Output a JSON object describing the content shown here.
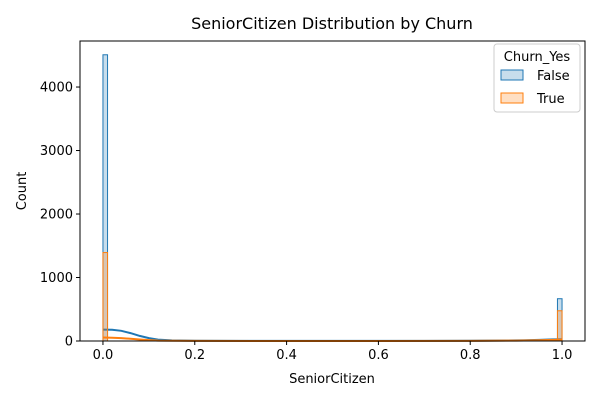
{
  "chart_data": {
    "type": "histogram",
    "title": "SeniorCitizen Distribution by Churn",
    "xlabel": "SeniorCitizen",
    "ylabel": "Count",
    "xlim": [
      -0.05,
      1.05
    ],
    "ylim": [
      0,
      4725
    ],
    "xticks": [
      0.0,
      0.2,
      0.4,
      0.6,
      0.8,
      1.0
    ],
    "xtick_labels": [
      "0.0",
      "0.2",
      "0.4",
      "0.6",
      "0.8",
      "1.0"
    ],
    "yticks": [
      0,
      1000,
      2000,
      3000,
      4000
    ],
    "ytick_labels": [
      "0",
      "1000",
      "2000",
      "3000",
      "4000"
    ],
    "grid": false,
    "legend": {
      "title": "Churn_Yes",
      "position": "top-right"
    },
    "series": [
      {
        "name": "False",
        "color": "#1f77b4",
        "bins": [
          {
            "x0": 0.0,
            "x1": 0.01,
            "count": 4508
          },
          {
            "x0": 0.99,
            "x1": 1.0,
            "count": 666
          }
        ],
        "kde": [
          [
            0.0,
            180
          ],
          [
            0.02,
            178
          ],
          [
            0.04,
            160
          ],
          [
            0.06,
            125
          ],
          [
            0.08,
            80
          ],
          [
            0.1,
            45
          ],
          [
            0.12,
            22
          ],
          [
            0.15,
            10
          ],
          [
            0.2,
            4
          ],
          [
            0.3,
            2
          ],
          [
            0.5,
            1
          ],
          [
            0.7,
            2
          ],
          [
            0.8,
            4
          ],
          [
            0.88,
            8
          ],
          [
            0.92,
            12
          ],
          [
            0.95,
            18
          ],
          [
            0.98,
            25
          ],
          [
            1.0,
            28
          ]
        ]
      },
      {
        "name": "True",
        "color": "#ff7f0e",
        "bins": [
          {
            "x0": 0.0,
            "x1": 0.01,
            "count": 1393
          },
          {
            "x0": 0.99,
            "x1": 1.0,
            "count": 476
          }
        ],
        "kde": [
          [
            0.0,
            55
          ],
          [
            0.02,
            52
          ],
          [
            0.04,
            45
          ],
          [
            0.06,
            35
          ],
          [
            0.08,
            24
          ],
          [
            0.1,
            14
          ],
          [
            0.12,
            7
          ],
          [
            0.15,
            3
          ],
          [
            0.2,
            1
          ],
          [
            0.5,
            0
          ],
          [
            0.8,
            2
          ],
          [
            0.9,
            6
          ],
          [
            0.95,
            12
          ],
          [
            0.98,
            18
          ],
          [
            1.0,
            22
          ]
        ]
      }
    ]
  }
}
